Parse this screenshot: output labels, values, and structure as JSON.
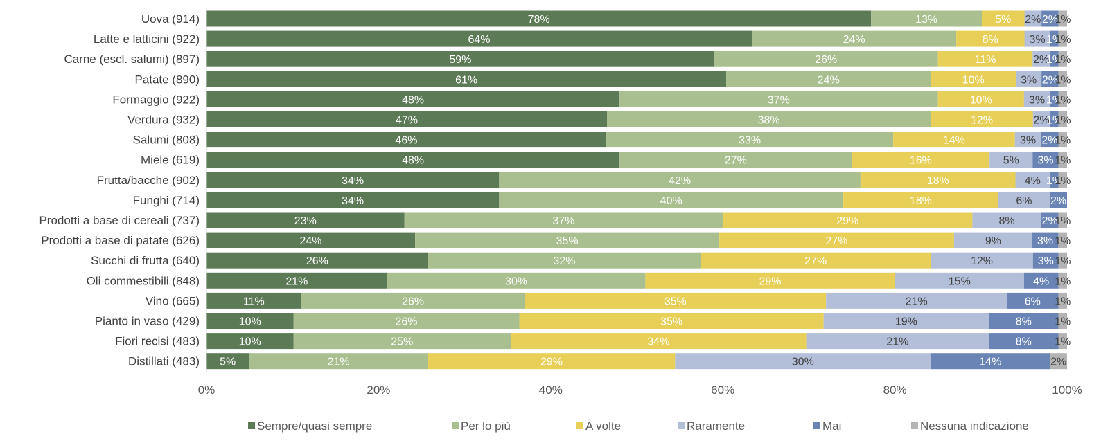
{
  "chart_data": {
    "type": "bar",
    "orientation": "horizontal",
    "stacked": "percent",
    "categories": [
      "Uova (914)",
      "Latte e latticini (922)",
      "Carne (escl. salumi) (897)",
      "Patate (890)",
      "Formaggio (922)",
      "Verdura (932)",
      "Salumi (808)",
      "Miele (619)",
      "Frutta/bacche (902)",
      "Funghi (714)",
      "Prodotti a base di cereali (737)",
      "Prodotti a base di patate (626)",
      "Succhi di frutta (640)",
      "Oli commestibili (848)",
      "Vino (665)",
      "Pianto in vaso (429)",
      "Fiori recisi (483)",
      "Distillati (483)"
    ],
    "series": [
      {
        "name": "Sempre/quasi sempre",
        "color": "#5d7a57",
        "label_color": "#ffffff",
        "values": [
          78,
          64,
          59,
          61,
          48,
          47,
          46,
          48,
          34,
          34,
          23,
          24,
          26,
          21,
          11,
          10,
          10,
          5
        ]
      },
      {
        "name": "Per lo più",
        "color": "#a9bf8f",
        "label_color": "#ffffff",
        "values": [
          13,
          24,
          26,
          24,
          37,
          38,
          33,
          27,
          42,
          40,
          37,
          35,
          32,
          30,
          26,
          26,
          25,
          21
        ]
      },
      {
        "name": "A volte",
        "color": "#e8cf57",
        "label_color": "#ffffff",
        "values": [
          5,
          8,
          11,
          10,
          10,
          12,
          14,
          16,
          18,
          18,
          29,
          27,
          27,
          29,
          35,
          35,
          34,
          29
        ]
      },
      {
        "name": "Raramente",
        "color": "#b3bfd9",
        "label_color": "#404040",
        "values": [
          2,
          3,
          2,
          3,
          3,
          2,
          3,
          5,
          4,
          6,
          8,
          9,
          12,
          15,
          21,
          19,
          21,
          30
        ]
      },
      {
        "name": "Mai",
        "color": "#6a85b5",
        "label_color": "#ffffff",
        "values": [
          2,
          1,
          1,
          2,
          1,
          1,
          2,
          3,
          1,
          2,
          2,
          3,
          3,
          4,
          6,
          8,
          8,
          14
        ]
      },
      {
        "name": "Nessuna indicazione",
        "color": "#b4b4b4",
        "label_color": "#404040",
        "values": [
          1,
          1,
          1,
          1,
          1,
          1,
          1,
          1,
          1,
          0,
          1,
          1,
          1,
          1,
          1,
          1,
          1,
          2
        ]
      }
    ],
    "xaxis": {
      "ticks": [
        "0%",
        "20%",
        "40%",
        "60%",
        "80%",
        "100%"
      ],
      "range": [
        0,
        100
      ]
    },
    "grid": false,
    "legend_position": "bottom"
  }
}
